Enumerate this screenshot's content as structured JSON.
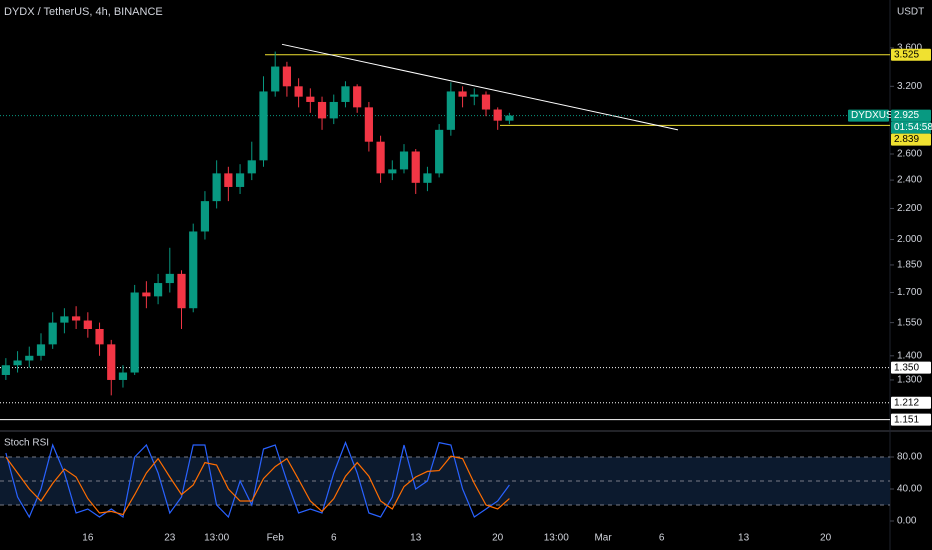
{
  "chart_data": [
    {
      "type": "candlestick",
      "title": "DYDX / TetherUS, 4h, BINANCE",
      "currency": "USDT",
      "categories": [
        null,
        null,
        null,
        null,
        null,
        null,
        null,
        "16",
        null,
        null,
        null,
        null,
        null,
        null,
        "23",
        null,
        null,
        null,
        "13:00",
        null,
        null,
        null,
        null,
        "Feb",
        null,
        null,
        null,
        null,
        "6",
        null,
        null,
        null,
        null,
        null,
        null,
        "13",
        null,
        null,
        null,
        null,
        null,
        null,
        "20",
        null,
        null,
        null,
        null,
        "13:00",
        null,
        null,
        null,
        "Mar",
        null,
        null,
        null,
        null,
        "6",
        null,
        null,
        null,
        null,
        null,
        null,
        "13",
        null,
        null,
        null,
        null,
        null,
        null,
        "20",
        null,
        null,
        null,
        null,
        null
      ],
      "open": [
        1.32,
        1.36,
        1.38,
        1.4,
        1.45,
        1.55,
        1.58,
        1.56,
        1.52,
        1.45,
        1.3,
        1.33,
        1.7,
        1.68,
        1.75,
        1.8,
        1.62,
        2.05,
        2.25,
        2.45,
        2.35,
        2.45,
        2.55,
        3.15,
        3.4,
        3.2,
        3.1,
        3.05,
        2.9,
        3.05,
        3.2,
        3.0,
        2.7,
        2.45,
        2.48,
        2.62,
        2.38,
        2.45,
        2.8,
        3.15,
        3.1,
        3.12,
        2.98,
        2.88,
        null,
        null,
        null,
        null,
        null,
        null,
        null,
        null,
        null,
        null,
        null,
        null,
        null,
        null,
        null,
        null,
        null,
        null,
        null,
        null,
        null,
        null,
        null,
        null,
        null,
        null,
        null,
        null,
        null,
        null,
        null,
        null
      ],
      "high": [
        1.39,
        1.42,
        1.44,
        1.5,
        1.6,
        1.62,
        1.63,
        1.6,
        1.55,
        1.47,
        1.36,
        1.74,
        1.76,
        1.8,
        1.95,
        1.82,
        2.1,
        2.32,
        2.55,
        2.5,
        2.52,
        2.7,
        3.3,
        3.56,
        3.45,
        3.28,
        3.18,
        3.1,
        3.12,
        3.25,
        3.22,
        3.05,
        2.75,
        2.55,
        2.68,
        2.64,
        2.5,
        2.85,
        3.24,
        3.2,
        3.18,
        3.15,
        3.0,
        2.95,
        null,
        null,
        null,
        null,
        null,
        null,
        null,
        null,
        null,
        null,
        null,
        null,
        null,
        null,
        null,
        null,
        null,
        null,
        null,
        null,
        null,
        null,
        null,
        null,
        null,
        null,
        null,
        null,
        null,
        null,
        null,
        null
      ],
      "low": [
        1.3,
        1.33,
        1.35,
        1.38,
        1.43,
        1.5,
        1.52,
        1.48,
        1.4,
        1.24,
        1.27,
        1.32,
        1.62,
        1.64,
        1.7,
        1.52,
        1.6,
        2.0,
        2.2,
        2.25,
        2.3,
        2.4,
        2.5,
        3.1,
        3.1,
        3.0,
        2.95,
        2.8,
        2.85,
        3.0,
        2.95,
        2.62,
        2.38,
        2.4,
        2.45,
        2.3,
        2.32,
        2.42,
        2.75,
        3.0,
        3.02,
        2.92,
        2.8,
        2.85,
        null,
        null,
        null,
        null,
        null,
        null,
        null,
        null,
        null,
        null,
        null,
        null,
        null,
        null,
        null,
        null,
        null,
        null,
        null,
        null,
        null,
        null,
        null,
        null,
        null,
        null,
        null,
        null,
        null,
        null,
        null,
        null
      ],
      "close": [
        1.36,
        1.38,
        1.4,
        1.45,
        1.55,
        1.58,
        1.56,
        1.52,
        1.45,
        1.3,
        1.33,
        1.7,
        1.68,
        1.75,
        1.8,
        1.62,
        2.05,
        2.25,
        2.45,
        2.35,
        2.45,
        2.55,
        3.15,
        3.4,
        3.2,
        3.1,
        3.05,
        2.9,
        3.05,
        3.2,
        3.0,
        2.7,
        2.45,
        2.48,
        2.62,
        2.38,
        2.45,
        2.8,
        3.15,
        3.1,
        3.12,
        2.98,
        2.88,
        2.925,
        null,
        null,
        null,
        null,
        null,
        null,
        null,
        null,
        null,
        null,
        null,
        null,
        null,
        null,
        null,
        null,
        null,
        null,
        null,
        null,
        null,
        null,
        null,
        null,
        null,
        null,
        null,
        null,
        null,
        null,
        null,
        null
      ],
      "up_color": "#089981",
      "down_color": "#f23645",
      "log_scale": true,
      "ylim": [
        1.115,
        4.17
      ],
      "yticks": [
        {
          "value": 3.6,
          "label": "3.600"
        },
        {
          "value": 3.2,
          "label": "3.200"
        },
        {
          "value": 2.6,
          "label": "2.600"
        },
        {
          "value": 2.4,
          "label": "2.400"
        },
        {
          "value": 2.2,
          "label": "2.200"
        },
        {
          "value": 2.0,
          "label": "2.000"
        },
        {
          "value": 1.85,
          "label": "1.850"
        },
        {
          "value": 1.7,
          "label": "1.700"
        },
        {
          "value": 1.55,
          "label": "1.550"
        },
        {
          "value": 1.4,
          "label": "1.400"
        },
        {
          "value": 1.3,
          "label": "1.300"
        }
      ],
      "price_lines": [
        {
          "value": 3.525,
          "label": "3.525",
          "color": "#f0e130",
          "style": "solid"
        },
        {
          "value": 2.839,
          "label": "2.839",
          "color": "#f0e130",
          "style": "solid"
        },
        {
          "value": 1.35,
          "label": "1.350",
          "color": "#ffffff",
          "style": "dotted"
        },
        {
          "value": 1.212,
          "label": "1.212",
          "color": "#ffffff",
          "style": "dotted"
        },
        {
          "value": 1.151,
          "label": "1.151",
          "color": "#ffffff",
          "style": "solid"
        }
      ],
      "last_price": {
        "symbol": "DYDXUSDT",
        "value": 2.925,
        "label": "2.925",
        "countdown": "01:54:58",
        "color": "#089981"
      },
      "trend_line": {
        "values": [
          3.64,
          2.8
        ],
        "color": "#ffffff"
      }
    },
    {
      "type": "line",
      "title": "Stoch RSI",
      "ylim": [
        -11.25,
        107.5
      ],
      "yticks": [
        {
          "value": 80,
          "label": "80.00"
        },
        {
          "value": 40,
          "label": "40.00"
        },
        {
          "value": 0,
          "label": "0.00"
        }
      ],
      "bands": [
        80,
        50,
        20
      ],
      "series": [
        {
          "color": "#2962ff",
          "values": [
            85,
            30,
            5,
            40,
            95,
            60,
            10,
            15,
            5,
            15,
            5,
            80,
            95,
            60,
            10,
            30,
            95,
            95,
            20,
            5,
            50,
            20,
            90,
            95,
            50,
            10,
            15,
            10,
            60,
            98,
            60,
            10,
            5,
            30,
            95,
            40,
            50,
            98,
            95,
            40,
            5,
            15,
            25,
            45
          ]
        },
        {
          "color": "#ff6d00",
          "values": [
            80,
            60,
            40,
            25,
            47,
            65,
            55,
            28,
            10,
            12,
            8,
            33,
            60,
            78,
            55,
            33,
            45,
            73,
            70,
            40,
            25,
            25,
            53,
            68,
            78,
            52,
            25,
            12,
            28,
            56,
            73,
            56,
            25,
            15,
            43,
            55,
            62,
            63,
            81,
            78,
            47,
            20,
            15,
            28
          ]
        }
      ]
    }
  ]
}
